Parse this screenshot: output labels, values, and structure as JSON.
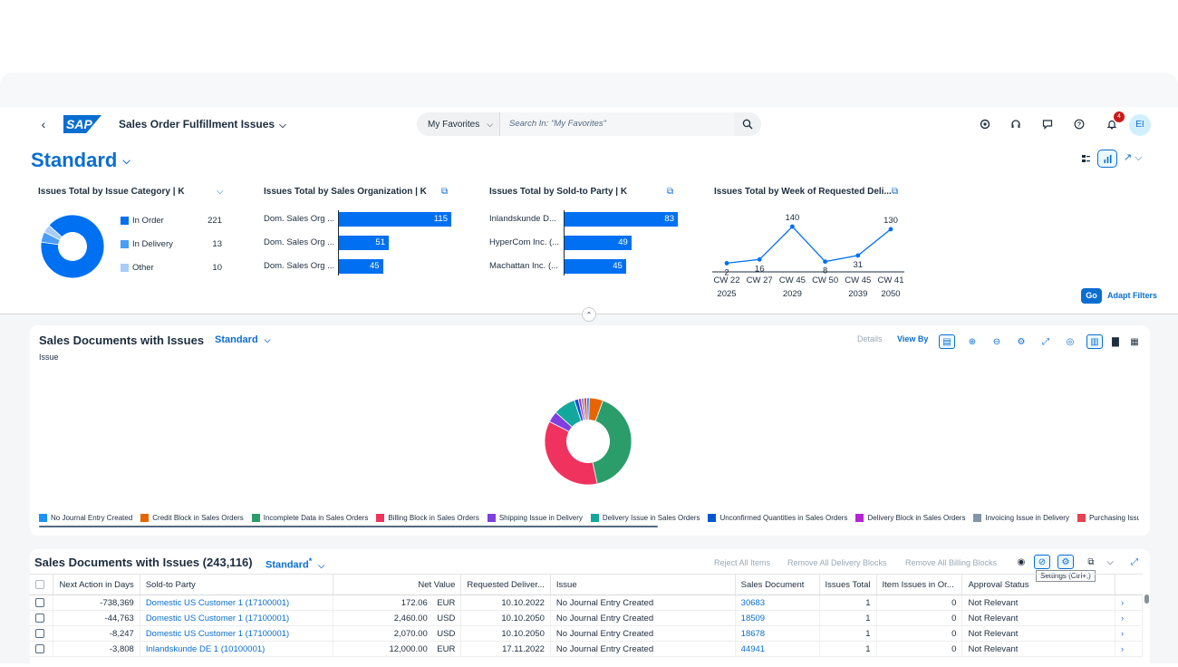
{
  "shell": {
    "app_title": "Sales Order Fulfillment Issues",
    "search_scope": "My Favorites",
    "search_placeholder": "Search In: \"My Favorites\"",
    "notification_count": "4",
    "avatar_initials": "EI"
  },
  "header": {
    "variant": "Standard",
    "go_label": "Go",
    "adapt_filters_label": "Adapt Filters"
  },
  "cards": {
    "category": {
      "title": "Issues Total by Issue Category  | K",
      "items": [
        {
          "label": "In Order",
          "value": "221",
          "color": "#0070f2"
        },
        {
          "label": "In Delivery",
          "value": "13",
          "color": "#4b9cf5"
        },
        {
          "label": "Other",
          "value": "10",
          "color": "#a8cdf7"
        }
      ]
    },
    "sales_org": {
      "title": "Issues Total by Sales Organization  | K",
      "bars": [
        {
          "label": "Dom. Sales Org ...",
          "value": 115
        },
        {
          "label": "Dom. Sales Org ...",
          "value": 51
        },
        {
          "label": "Dom. Sales Org ...",
          "value": 45
        }
      ]
    },
    "sold_to": {
      "title": "Issues Total by Sold-to Party  | K",
      "bars": [
        {
          "label": "Inlandskunde D...",
          "value": 83
        },
        {
          "label": "HyperCom Inc. (...",
          "value": 49
        },
        {
          "label": "Machattan Inc. (...",
          "value": 45
        }
      ]
    },
    "week": {
      "title": "Issues Total by Week of Requested Deli...",
      "weeks": [
        "CW 22",
        "CW 27",
        "CW 45",
        "CW 50",
        "CW 45",
        "CW 41"
      ],
      "years": [
        "2025",
        "",
        "2029",
        "",
        "2039",
        "2050"
      ],
      "values": [
        2,
        16,
        140,
        8,
        31,
        130
      ]
    }
  },
  "chart_data": [
    {
      "type": "pie",
      "title": "Issues Total by Issue Category",
      "categories": [
        "In Order",
        "In Delivery",
        "Other"
      ],
      "values": [
        221,
        13,
        10
      ]
    },
    {
      "type": "bar",
      "title": "Issues Total by Sales Organization",
      "categories": [
        "Dom. Sales Org ...",
        "Dom. Sales Org ...",
        "Dom. Sales Org ..."
      ],
      "values": [
        115,
        51,
        45
      ]
    },
    {
      "type": "bar",
      "title": "Issues Total by Sold-to Party",
      "categories": [
        "Inlandskunde D...",
        "HyperCom Inc. (...",
        "Machattan Inc. (..."
      ],
      "values": [
        83,
        49,
        45
      ]
    },
    {
      "type": "line",
      "title": "Issues Total by Week of Requested Deli...",
      "x": [
        "CW 22 2025",
        "CW 27",
        "CW 45 2029",
        "CW 50",
        "CW 45 2039",
        "CW 41 2050"
      ],
      "values": [
        2,
        16,
        140,
        8,
        31,
        130
      ]
    },
    {
      "type": "pie",
      "title": "",
      "categories": [
        "No Journal Entry Created",
        "Credit Block in Sales Orders",
        "Incomplete Data in Sales Orders",
        "Billing Block in Sales Orders",
        "Shipping Issue in Delivery",
        "Delivery Issue in Sales Orders",
        "Unconfirmed Quantities in Sales Orders",
        "Delivery Block in Sales Orders",
        "Invoicing Issue in Delivery",
        "Purchasing Issu"
      ],
      "values": [
        1,
        5,
        40,
        35,
        4,
        8,
        1.5,
        1,
        1,
        1
      ]
    }
  ],
  "chart_panel": {
    "title": "Sales Documents with Issues",
    "variant": "Standard",
    "dimension_label": "Issue",
    "details_label": "Details",
    "view_by_label": "View By",
    "legend": [
      {
        "label": "No Journal Entry Created",
        "color": "#1b90ff"
      },
      {
        "label": "Credit Block in Sales Orders",
        "color": "#e76500"
      },
      {
        "label": "Incomplete Data in Sales Orders",
        "color": "#2a9d6a"
      },
      {
        "label": "Billing Block in Sales Orders",
        "color": "#f0325f"
      },
      {
        "label": "Shipping Issue in Delivery",
        "color": "#7f3fe0"
      },
      {
        "label": "Delivery Issue in Sales Orders",
        "color": "#13a89e"
      },
      {
        "label": "Unconfirmed Quantities in Sales Orders",
        "color": "#0057d2"
      },
      {
        "label": "Delivery Block in Sales Orders",
        "color": "#b524d3"
      },
      {
        "label": "Invoicing Issue in Delivery",
        "color": "#8396a8"
      },
      {
        "label": "Purchasing Issu",
        "color": "#e34352"
      }
    ]
  },
  "table_panel": {
    "title": "Sales Documents with Issues (243,116)",
    "variant": "Standard",
    "variant_marker": "*",
    "reject_label": "Reject All Items",
    "remove_delivery_label": "Remove All Delivery Blocks",
    "remove_billing_label": "Remove All Billing Blocks",
    "tooltip": "Settings (Ctrl+,)",
    "columns": [
      "Next Action in Days",
      "Sold-to Party",
      "Net Value",
      "Requested Deliver...",
      "Issue",
      "Sales Document",
      "Issues Total",
      "Item Issues in Or...",
      "Approval Status"
    ],
    "rows": [
      {
        "days": "-738,369",
        "party": "Domestic US Customer 1 (17100001)",
        "net": "172.06",
        "cur": "EUR",
        "date": "10.10.2022",
        "issue": "No Journal Entry Created",
        "doc": "30683",
        "total": "1",
        "item": "0",
        "status": "Not Relevant"
      },
      {
        "days": "-44,763",
        "party": "Domestic US Customer 1 (17100001)",
        "net": "2,460.00",
        "cur": "USD",
        "date": "10.10.2050",
        "issue": "No Journal Entry Created",
        "doc": "18509",
        "total": "1",
        "item": "0",
        "status": "Not Relevant"
      },
      {
        "days": "-8,247",
        "party": "Domestic US Customer 1 (17100001)",
        "net": "2,070.00",
        "cur": "USD",
        "date": "10.10.2050",
        "issue": "No Journal Entry Created",
        "doc": "18678",
        "total": "1",
        "item": "0",
        "status": "Not Relevant"
      },
      {
        "days": "-3,808",
        "party": "Inlandskunde DE 1 (10100001)",
        "net": "12,000.00",
        "cur": "EUR",
        "date": "17.11.2022",
        "issue": "No Journal Entry Created",
        "doc": "44941",
        "total": "1",
        "item": "0",
        "status": "Not Relevant"
      }
    ]
  }
}
